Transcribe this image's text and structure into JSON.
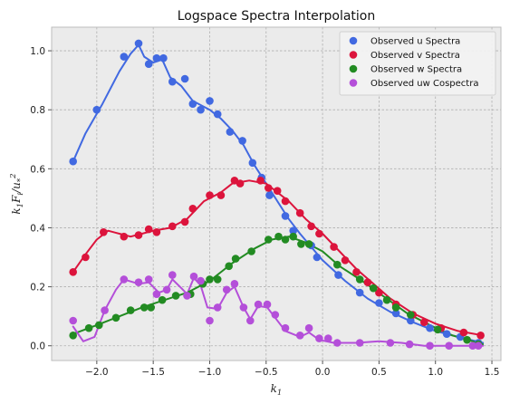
{
  "chart_data": {
    "type": "scatter",
    "title": "Logspace Spectra Interpolation",
    "xlabel": "k_1",
    "ylabel": "k_1 F_i / u_*^2",
    "xlim": [
      -2.4,
      1.58
    ],
    "ylim": [
      -0.05,
      1.08
    ],
    "xticks": [
      "−2.0",
      "−1.5",
      "−1.0",
      "−0.5",
      "0.0",
      "0.5",
      "1.0",
      "1.5"
    ],
    "xtick_values": [
      -2.0,
      -1.5,
      -1.0,
      -0.5,
      0.0,
      0.5,
      1.0,
      1.5
    ],
    "yticks": [
      "0.0",
      "0.2",
      "0.4",
      "0.6",
      "0.8",
      "1.0"
    ],
    "ytick_values": [
      0.0,
      0.2,
      0.4,
      0.6,
      0.8,
      1.0
    ],
    "grid": true,
    "background_color": "#ebebeb",
    "legend_position": "top-right",
    "series": [
      {
        "name": "Observed u Spectra",
        "color": "#4169e1",
        "points": [
          [
            -2.21,
            0.625
          ],
          [
            -2.0,
            0.8
          ],
          [
            -1.76,
            0.98
          ],
          [
            -1.63,
            1.025
          ],
          [
            -1.54,
            0.955
          ],
          [
            -1.47,
            0.975
          ],
          [
            -1.41,
            0.975
          ],
          [
            -1.33,
            0.895
          ],
          [
            -1.22,
            0.905
          ],
          [
            -1.15,
            0.82
          ],
          [
            -1.08,
            0.8
          ],
          [
            -1.0,
            0.83
          ],
          [
            -0.93,
            0.785
          ],
          [
            -0.82,
            0.725
          ],
          [
            -0.71,
            0.695
          ],
          [
            -0.62,
            0.62
          ],
          [
            -0.54,
            0.57
          ],
          [
            -0.47,
            0.51
          ],
          [
            -0.33,
            0.44
          ],
          [
            -0.26,
            0.39
          ],
          [
            -0.1,
            0.34
          ],
          [
            -0.05,
            0.3
          ],
          [
            0.14,
            0.24
          ],
          [
            0.33,
            0.18
          ],
          [
            0.5,
            0.145
          ],
          [
            0.65,
            0.11
          ],
          [
            0.78,
            0.085
          ],
          [
            0.95,
            0.06
          ],
          [
            1.1,
            0.04
          ],
          [
            1.22,
            0.03
          ],
          [
            1.38,
            0.01
          ]
        ],
        "curve": [
          [
            -2.21,
            0.625
          ],
          [
            -2.1,
            0.72
          ],
          [
            -1.95,
            0.82
          ],
          [
            -1.8,
            0.93
          ],
          [
            -1.7,
            0.99
          ],
          [
            -1.63,
            1.02
          ],
          [
            -1.58,
            0.98
          ],
          [
            -1.5,
            0.96
          ],
          [
            -1.42,
            0.97
          ],
          [
            -1.35,
            0.91
          ],
          [
            -1.25,
            0.88
          ],
          [
            -1.15,
            0.83
          ],
          [
            -1.0,
            0.8
          ],
          [
            -0.9,
            0.77
          ],
          [
            -0.8,
            0.73
          ],
          [
            -0.7,
            0.68
          ],
          [
            -0.6,
            0.61
          ],
          [
            -0.5,
            0.55
          ],
          [
            -0.4,
            0.49
          ],
          [
            -0.3,
            0.43
          ],
          [
            -0.2,
            0.38
          ],
          [
            -0.1,
            0.335
          ],
          [
            0.0,
            0.29
          ],
          [
            0.2,
            0.22
          ],
          [
            0.4,
            0.16
          ],
          [
            0.6,
            0.115
          ],
          [
            0.8,
            0.08
          ],
          [
            1.0,
            0.05
          ],
          [
            1.2,
            0.03
          ],
          [
            1.42,
            0.01
          ]
        ]
      },
      {
        "name": "Observed v Spectra",
        "color": "#dc143c",
        "points": [
          [
            -2.21,
            0.25
          ],
          [
            -2.1,
            0.3
          ],
          [
            -1.94,
            0.385
          ],
          [
            -1.76,
            0.37
          ],
          [
            -1.63,
            0.375
          ],
          [
            -1.54,
            0.395
          ],
          [
            -1.47,
            0.385
          ],
          [
            -1.33,
            0.405
          ],
          [
            -1.22,
            0.42
          ],
          [
            -1.15,
            0.465
          ],
          [
            -1.0,
            0.51
          ],
          [
            -0.9,
            0.51
          ],
          [
            -0.78,
            0.56
          ],
          [
            -0.73,
            0.55
          ],
          [
            -0.55,
            0.56
          ],
          [
            -0.48,
            0.535
          ],
          [
            -0.4,
            0.525
          ],
          [
            -0.33,
            0.49
          ],
          [
            -0.2,
            0.45
          ],
          [
            -0.1,
            0.405
          ],
          [
            -0.03,
            0.38
          ],
          [
            0.1,
            0.335
          ],
          [
            0.2,
            0.29
          ],
          [
            0.3,
            0.25
          ],
          [
            0.4,
            0.215
          ],
          [
            0.5,
            0.18
          ],
          [
            0.65,
            0.14
          ],
          [
            0.8,
            0.105
          ],
          [
            0.9,
            0.08
          ],
          [
            1.05,
            0.06
          ],
          [
            1.25,
            0.045
          ],
          [
            1.4,
            0.035
          ]
        ],
        "curve": [
          [
            -2.21,
            0.25
          ],
          [
            -2.1,
            0.31
          ],
          [
            -2.0,
            0.36
          ],
          [
            -1.9,
            0.39
          ],
          [
            -1.8,
            0.38
          ],
          [
            -1.7,
            0.37
          ],
          [
            -1.6,
            0.38
          ],
          [
            -1.5,
            0.39
          ],
          [
            -1.35,
            0.4
          ],
          [
            -1.2,
            0.43
          ],
          [
            -1.05,
            0.49
          ],
          [
            -0.9,
            0.52
          ],
          [
            -0.8,
            0.55
          ],
          [
            -0.65,
            0.56
          ],
          [
            -0.5,
            0.55
          ],
          [
            -0.4,
            0.52
          ],
          [
            -0.3,
            0.49
          ],
          [
            -0.15,
            0.43
          ],
          [
            0.0,
            0.38
          ],
          [
            0.15,
            0.32
          ],
          [
            0.3,
            0.26
          ],
          [
            0.45,
            0.21
          ],
          [
            0.6,
            0.16
          ],
          [
            0.8,
            0.11
          ],
          [
            1.0,
            0.075
          ],
          [
            1.2,
            0.05
          ],
          [
            1.42,
            0.035
          ]
        ]
      },
      {
        "name": "Observed w Spectra",
        "color": "#228b22",
        "points": [
          [
            -2.21,
            0.035
          ],
          [
            -2.07,
            0.06
          ],
          [
            -1.98,
            0.07
          ],
          [
            -1.83,
            0.095
          ],
          [
            -1.7,
            0.12
          ],
          [
            -1.58,
            0.13
          ],
          [
            -1.52,
            0.13
          ],
          [
            -1.42,
            0.155
          ],
          [
            -1.3,
            0.17
          ],
          [
            -1.17,
            0.175
          ],
          [
            -1.06,
            0.21
          ],
          [
            -1.0,
            0.225
          ],
          [
            -0.93,
            0.225
          ],
          [
            -0.83,
            0.27
          ],
          [
            -0.77,
            0.295
          ],
          [
            -0.63,
            0.32
          ],
          [
            -0.48,
            0.36
          ],
          [
            -0.39,
            0.37
          ],
          [
            -0.33,
            0.36
          ],
          [
            -0.26,
            0.37
          ],
          [
            -0.19,
            0.345
          ],
          [
            -0.12,
            0.345
          ],
          [
            0.13,
            0.275
          ],
          [
            0.33,
            0.225
          ],
          [
            0.45,
            0.195
          ],
          [
            0.57,
            0.155
          ],
          [
            0.65,
            0.13
          ],
          [
            0.78,
            0.105
          ],
          [
            1.02,
            0.055
          ],
          [
            1.28,
            0.02
          ],
          [
            1.38,
            0.005
          ]
        ],
        "curve": [
          [
            -2.21,
            0.04
          ],
          [
            -2.0,
            0.07
          ],
          [
            -1.8,
            0.1
          ],
          [
            -1.6,
            0.13
          ],
          [
            -1.4,
            0.155
          ],
          [
            -1.2,
            0.18
          ],
          [
            -1.0,
            0.22
          ],
          [
            -0.8,
            0.28
          ],
          [
            -0.6,
            0.33
          ],
          [
            -0.45,
            0.36
          ],
          [
            -0.3,
            0.37
          ],
          [
            -0.15,
            0.35
          ],
          [
            0.0,
            0.32
          ],
          [
            0.15,
            0.27
          ],
          [
            0.35,
            0.22
          ],
          [
            0.55,
            0.165
          ],
          [
            0.75,
            0.11
          ],
          [
            0.95,
            0.07
          ],
          [
            1.15,
            0.035
          ],
          [
            1.42,
            0.005
          ]
        ]
      },
      {
        "name": "Observed uw Cospectra",
        "color": "#b44fd9",
        "points": [
          [
            -2.21,
            0.085
          ],
          [
            -1.93,
            0.12
          ],
          [
            -1.76,
            0.225
          ],
          [
            -1.63,
            0.215
          ],
          [
            -1.54,
            0.225
          ],
          [
            -1.47,
            0.175
          ],
          [
            -1.38,
            0.19
          ],
          [
            -1.33,
            0.24
          ],
          [
            -1.2,
            0.17
          ],
          [
            -1.14,
            0.235
          ],
          [
            -1.08,
            0.22
          ],
          [
            -1.0,
            0.085
          ],
          [
            -0.93,
            0.13
          ],
          [
            -0.85,
            0.19
          ],
          [
            -0.78,
            0.21
          ],
          [
            -0.7,
            0.13
          ],
          [
            -0.64,
            0.085
          ],
          [
            -0.57,
            0.14
          ],
          [
            -0.49,
            0.14
          ],
          [
            -0.42,
            0.105
          ],
          [
            -0.33,
            0.06
          ],
          [
            -0.2,
            0.035
          ],
          [
            -0.12,
            0.06
          ],
          [
            -0.03,
            0.025
          ],
          [
            0.05,
            0.025
          ],
          [
            0.13,
            0.01
          ],
          [
            0.33,
            0.01
          ],
          [
            0.6,
            0.01
          ],
          [
            0.77,
            0.005
          ],
          [
            0.95,
            0.0
          ],
          [
            1.12,
            0.0
          ],
          [
            1.33,
            0.0
          ],
          [
            1.38,
            0.0
          ]
        ],
        "curve": [
          [
            -2.21,
            0.065
          ],
          [
            -2.12,
            0.015
          ],
          [
            -2.02,
            0.03
          ],
          [
            -1.93,
            0.12
          ],
          [
            -1.83,
            0.19
          ],
          [
            -1.76,
            0.225
          ],
          [
            -1.63,
            0.21
          ],
          [
            -1.54,
            0.215
          ],
          [
            -1.45,
            0.18
          ],
          [
            -1.38,
            0.19
          ],
          [
            -1.33,
            0.225
          ],
          [
            -1.25,
            0.195
          ],
          [
            -1.2,
            0.175
          ],
          [
            -1.14,
            0.23
          ],
          [
            -1.08,
            0.205
          ],
          [
            -1.02,
            0.13
          ],
          [
            -0.93,
            0.125
          ],
          [
            -0.85,
            0.18
          ],
          [
            -0.78,
            0.2
          ],
          [
            -0.7,
            0.13
          ],
          [
            -0.64,
            0.09
          ],
          [
            -0.57,
            0.135
          ],
          [
            -0.49,
            0.13
          ],
          [
            -0.42,
            0.095
          ],
          [
            -0.33,
            0.05
          ],
          [
            -0.2,
            0.03
          ],
          [
            -0.12,
            0.045
          ],
          [
            -0.03,
            0.02
          ],
          [
            0.1,
            0.01
          ],
          [
            0.3,
            0.01
          ],
          [
            0.5,
            0.015
          ],
          [
            0.7,
            0.01
          ],
          [
            0.9,
            0.0
          ],
          [
            1.2,
            0.0
          ],
          [
            1.42,
            0.0
          ]
        ]
      }
    ]
  }
}
